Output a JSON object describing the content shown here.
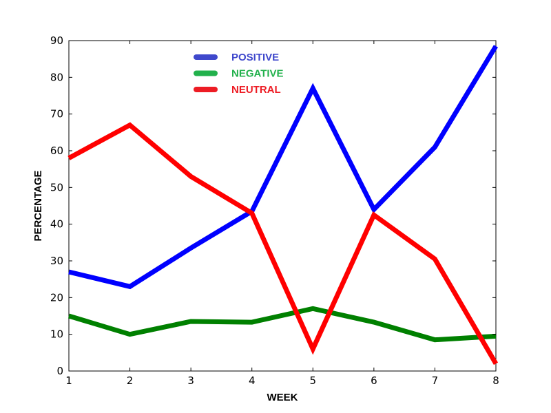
{
  "chart_data": {
    "type": "line",
    "x": [
      1,
      2,
      3,
      4,
      5,
      6,
      7,
      8
    ],
    "xlabel": "WEEK",
    "ylabel": "PERCENTAGE",
    "xlim": [
      1,
      8
    ],
    "ylim": [
      0,
      90
    ],
    "xticks": [
      "1",
      "2",
      "3",
      "4",
      "5",
      "6",
      "7",
      "8"
    ],
    "yticks": [
      "0",
      "10",
      "20",
      "30",
      "40",
      "50",
      "60",
      "70",
      "80",
      "90"
    ],
    "grid": false,
    "legend_position": "upper-left",
    "series": [
      {
        "name": "POSITIVE",
        "color": "#0000ff",
        "legend_color": "#3f48cc",
        "values": [
          27,
          23,
          33.5,
          43.5,
          77,
          44,
          61,
          88.5
        ]
      },
      {
        "name": "NEGATIVE",
        "color": "#008000",
        "legend_color": "#22b14c",
        "values": [
          15,
          10,
          13.5,
          13.3,
          17,
          13.3,
          8.5,
          9.5
        ]
      },
      {
        "name": "NEUTRAL",
        "color": "#ff0000",
        "legend_color": "#ed1c24",
        "values": [
          58,
          67,
          53,
          43,
          6,
          42.5,
          30.5,
          2
        ]
      }
    ]
  }
}
